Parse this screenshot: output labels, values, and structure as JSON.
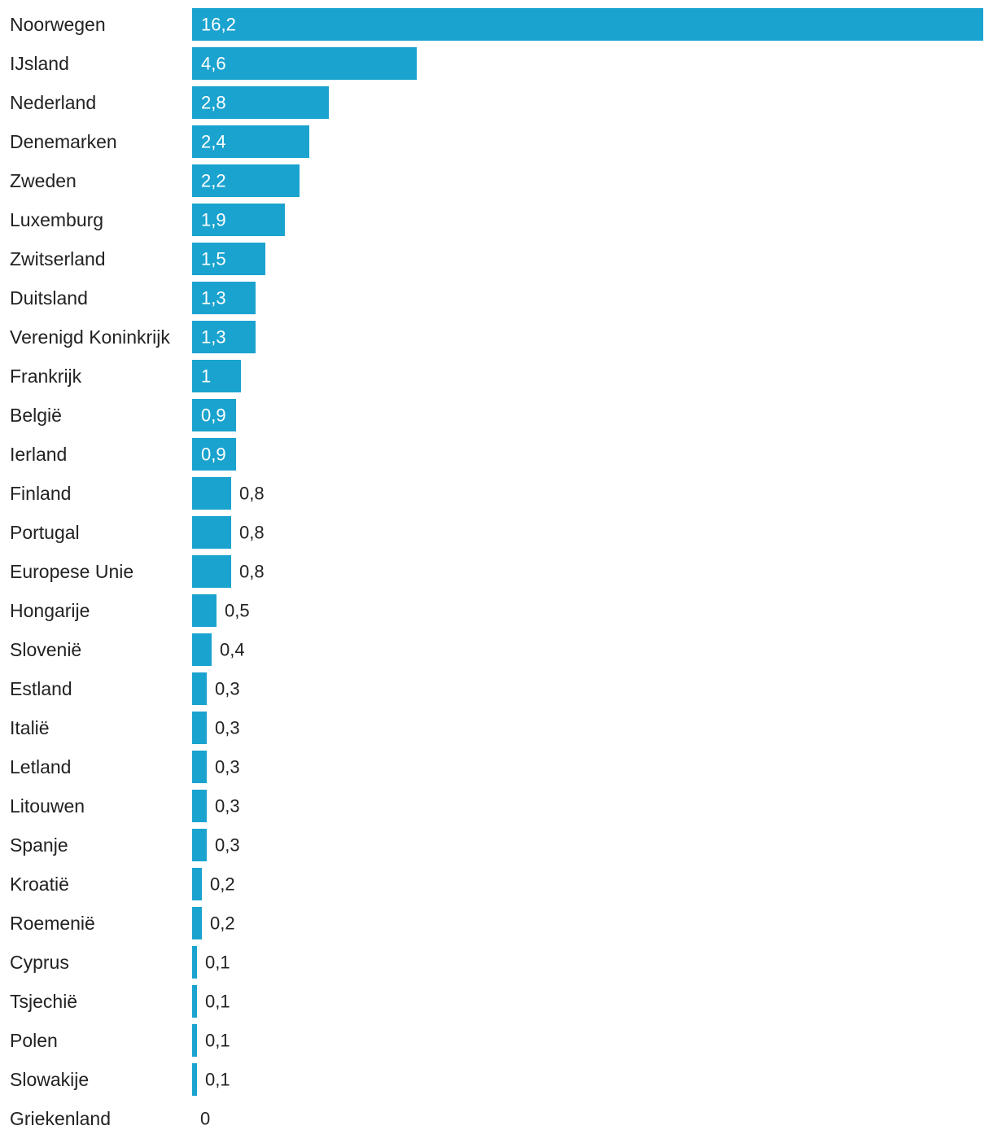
{
  "chart_data": {
    "type": "bar",
    "orientation": "horizontal",
    "categories": [
      "Noorwegen",
      "IJsland",
      "Nederland",
      "Denemarken",
      "Zweden",
      "Luxemburg",
      "Zwitserland",
      "Duitsland",
      "Verenigd Koninkrijk",
      "Frankrijk",
      "België",
      "Ierland",
      "Finland",
      "Portugal",
      "Europese Unie",
      "Hongarije",
      "Slovenië",
      "Estland",
      "Italië",
      "Letland",
      "Litouwen",
      "Spanje",
      "Kroatië",
      "Roemenië",
      "Cyprus",
      "Tsjechië",
      "Polen",
      "Slowakije",
      "Griekenland"
    ],
    "values": [
      16.2,
      4.6,
      2.8,
      2.4,
      2.2,
      1.9,
      1.5,
      1.3,
      1.3,
      1,
      0.9,
      0.9,
      0.8,
      0.8,
      0.8,
      0.5,
      0.4,
      0.3,
      0.3,
      0.3,
      0.3,
      0.3,
      0.2,
      0.2,
      0.1,
      0.1,
      0.1,
      0.1,
      0
    ],
    "value_labels": [
      "16,2",
      "4,6",
      "2,8",
      "2,4",
      "2,2",
      "1,9",
      "1,5",
      "1,3",
      "1,3",
      "1",
      "0,9",
      "0,9",
      "0,8",
      "0,8",
      "0,8",
      "0,5",
      "0,4",
      "0,3",
      "0,3",
      "0,3",
      "0,3",
      "0,3",
      "0,2",
      "0,2",
      "0,1",
      "0,1",
      "0,1",
      "0,1",
      "0"
    ],
    "xlim": [
      0,
      16.2
    ],
    "grid": false,
    "legend": "none",
    "bar_color": "#1aa3cf",
    "inside_label_color": "#ffffff",
    "outside_label_color": "#222222"
  }
}
